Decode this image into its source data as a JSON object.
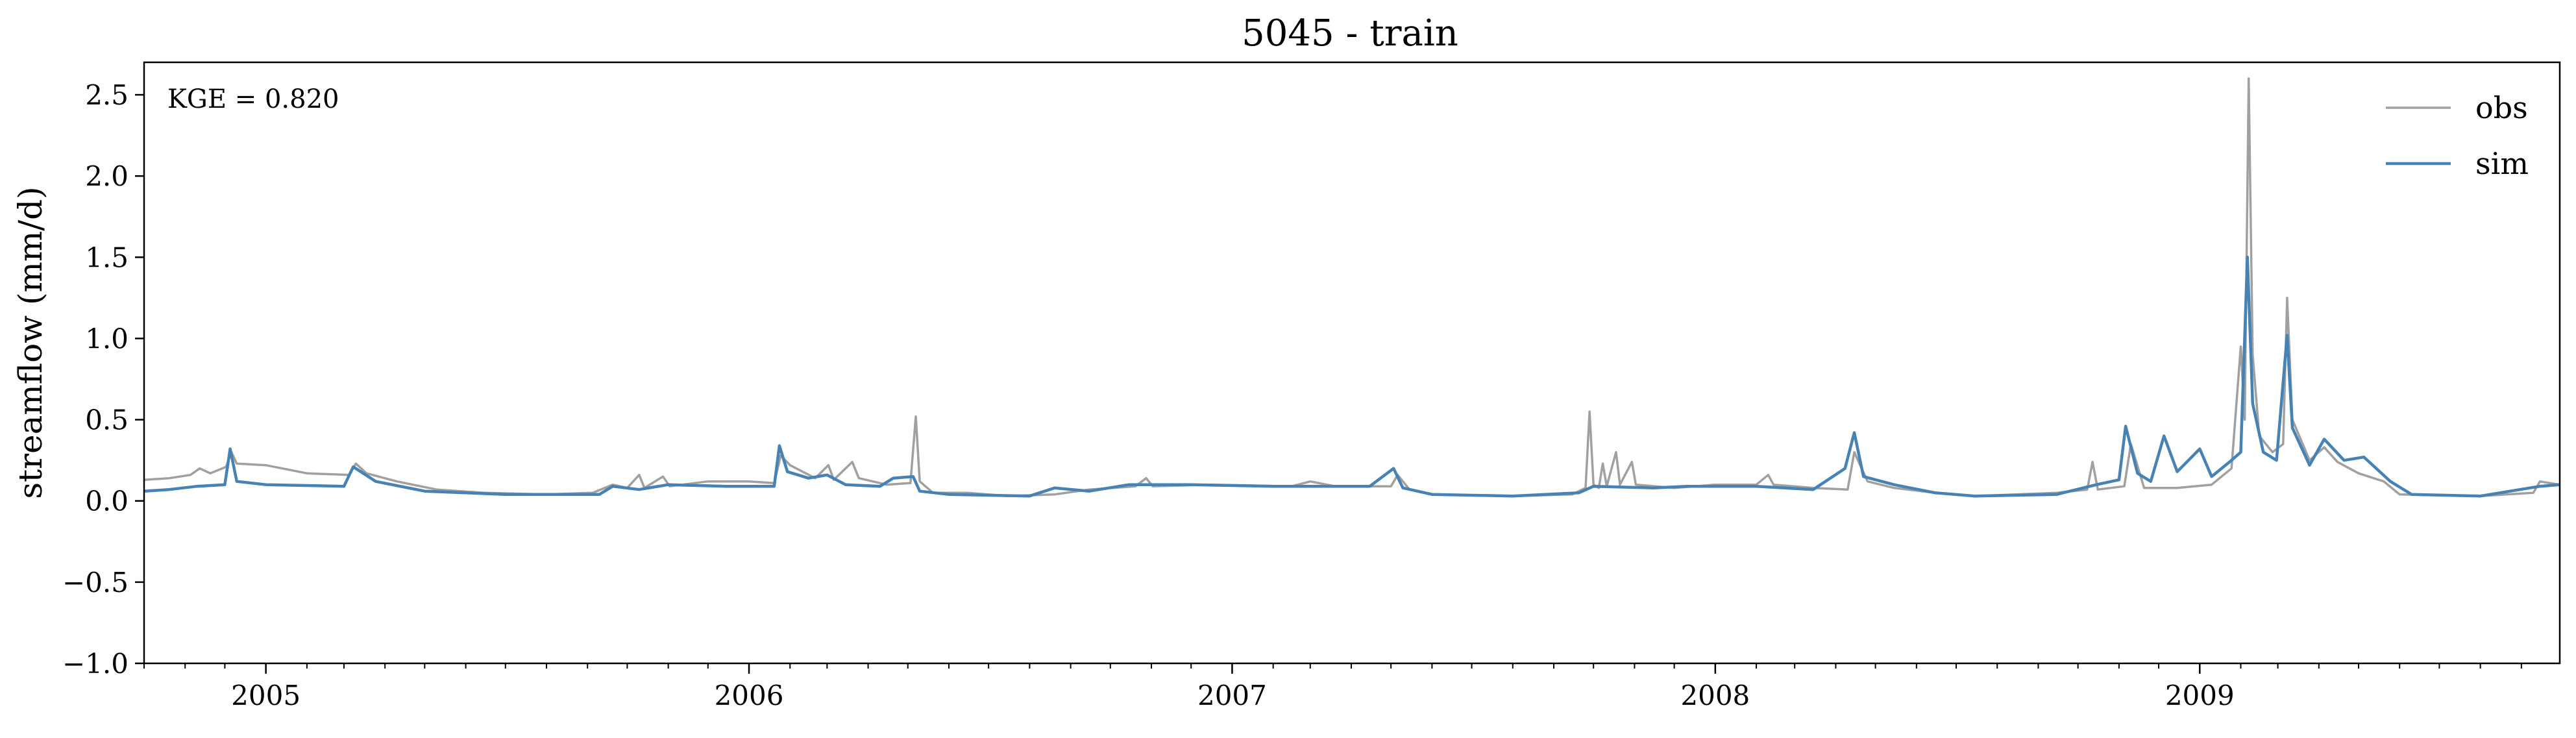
{
  "chart_data": {
    "type": "line",
    "title": "5045 - train",
    "xlabel": "",
    "ylabel": "streamflow (mm/d)",
    "annotation": "KGE = 0.820",
    "xlim": [
      "2004-10-01",
      "2009-09-30"
    ],
    "ylim": [
      -1.0,
      2.7
    ],
    "yticks": [
      -1.0,
      -0.5,
      0.0,
      0.5,
      1.0,
      1.5,
      2.0,
      2.5
    ],
    "ytick_labels": [
      "−1.0",
      "−0.5",
      "0.0",
      "0.5",
      "1.0",
      "1.5",
      "2.0",
      "2.5"
    ],
    "xticks": [
      "2005-01-01",
      "2006-01-01",
      "2007-01-01",
      "2008-01-01",
      "2009-01-01"
    ],
    "xtick_labels": [
      "2005",
      "2006",
      "2007",
      "2008",
      "2009"
    ],
    "grid": false,
    "legend_position": "top-right",
    "series": [
      {
        "name": "obs",
        "color": "#a0a0a0",
        "points": [
          [
            "2004-10-01",
            0.13
          ],
          [
            "2004-10-20",
            0.14
          ],
          [
            "2004-11-05",
            0.16
          ],
          [
            "2004-11-12",
            0.2
          ],
          [
            "2004-11-20",
            0.17
          ],
          [
            "2004-12-02",
            0.21
          ],
          [
            "2004-12-06",
            0.3
          ],
          [
            "2004-12-10",
            0.23
          ],
          [
            "2005-01-01",
            0.22
          ],
          [
            "2005-02-01",
            0.17
          ],
          [
            "2005-03-05",
            0.16
          ],
          [
            "2005-03-10",
            0.23
          ],
          [
            "2005-03-18",
            0.17
          ],
          [
            "2005-04-10",
            0.12
          ],
          [
            "2005-05-10",
            0.07
          ],
          [
            "2005-06-15",
            0.05
          ],
          [
            "2005-08-01",
            0.04
          ],
          [
            "2005-09-05",
            0.05
          ],
          [
            "2005-09-20",
            0.1
          ],
          [
            "2005-10-01",
            0.08
          ],
          [
            "2005-10-10",
            0.16
          ],
          [
            "2005-10-14",
            0.08
          ],
          [
            "2005-10-28",
            0.15
          ],
          [
            "2005-11-02",
            0.09
          ],
          [
            "2005-12-01",
            0.12
          ],
          [
            "2006-01-01",
            0.12
          ],
          [
            "2006-01-20",
            0.11
          ],
          [
            "2006-01-25",
            0.28
          ],
          [
            "2006-02-01",
            0.22
          ],
          [
            "2006-02-20",
            0.14
          ],
          [
            "2006-03-02",
            0.22
          ],
          [
            "2006-03-06",
            0.13
          ],
          [
            "2006-03-20",
            0.24
          ],
          [
            "2006-03-25",
            0.14
          ],
          [
            "2006-04-15",
            0.1
          ],
          [
            "2006-05-03",
            0.11
          ],
          [
            "2006-05-07",
            0.52
          ],
          [
            "2006-05-10",
            0.12
          ],
          [
            "2006-05-20",
            0.05
          ],
          [
            "2006-06-15",
            0.05
          ],
          [
            "2006-07-15",
            0.03
          ],
          [
            "2006-08-20",
            0.04
          ],
          [
            "2006-09-15",
            0.07
          ],
          [
            "2006-10-20",
            0.09
          ],
          [
            "2006-10-28",
            0.14
          ],
          [
            "2006-11-02",
            0.09
          ],
          [
            "2006-12-15",
            0.1
          ],
          [
            "2007-02-15",
            0.09
          ],
          [
            "2007-03-01",
            0.12
          ],
          [
            "2007-03-20",
            0.09
          ],
          [
            "2007-05-01",
            0.09
          ],
          [
            "2007-05-06",
            0.16
          ],
          [
            "2007-05-15",
            0.07
          ],
          [
            "2007-06-01",
            0.04
          ],
          [
            "2007-08-01",
            0.03
          ],
          [
            "2007-09-15",
            0.04
          ],
          [
            "2007-09-25",
            0.08
          ],
          [
            "2007-09-28",
            0.55
          ],
          [
            "2007-10-01",
            0.1
          ],
          [
            "2007-10-05",
            0.08
          ],
          [
            "2007-10-08",
            0.23
          ],
          [
            "2007-10-11",
            0.09
          ],
          [
            "2007-10-18",
            0.3
          ],
          [
            "2007-10-21",
            0.1
          ],
          [
            "2007-10-30",
            0.24
          ],
          [
            "2007-11-02",
            0.1
          ],
          [
            "2007-12-01",
            0.08
          ],
          [
            "2008-01-01",
            0.1
          ],
          [
            "2008-02-01",
            0.1
          ],
          [
            "2008-02-10",
            0.16
          ],
          [
            "2008-02-14",
            0.1
          ],
          [
            "2008-03-15",
            0.08
          ],
          [
            "2008-04-10",
            0.07
          ],
          [
            "2008-04-15",
            0.3
          ],
          [
            "2008-04-25",
            0.12
          ],
          [
            "2008-05-15",
            0.08
          ],
          [
            "2008-06-15",
            0.05
          ],
          [
            "2008-07-15",
            0.03
          ],
          [
            "2008-08-15",
            0.04
          ],
          [
            "2008-09-15",
            0.05
          ],
          [
            "2008-10-08",
            0.07
          ],
          [
            "2008-10-12",
            0.24
          ],
          [
            "2008-10-16",
            0.07
          ],
          [
            "2008-11-05",
            0.09
          ],
          [
            "2008-11-10",
            0.35
          ],
          [
            "2008-11-20",
            0.08
          ],
          [
            "2008-12-15",
            0.08
          ],
          [
            "2009-01-10",
            0.1
          ],
          [
            "2009-01-25",
            0.2
          ],
          [
            "2009-02-01",
            0.95
          ],
          [
            "2009-02-04",
            0.5
          ],
          [
            "2009-02-07",
            2.6
          ],
          [
            "2009-02-10",
            0.9
          ],
          [
            "2009-02-15",
            0.4
          ],
          [
            "2009-02-25",
            0.3
          ],
          [
            "2009-03-05",
            0.35
          ],
          [
            "2009-03-08",
            1.25
          ],
          [
            "2009-03-12",
            0.5
          ],
          [
            "2009-03-25",
            0.25
          ],
          [
            "2009-04-05",
            0.33
          ],
          [
            "2009-04-15",
            0.24
          ],
          [
            "2009-05-01",
            0.17
          ],
          [
            "2009-05-20",
            0.12
          ],
          [
            "2009-06-01",
            0.04
          ],
          [
            "2009-08-01",
            0.03
          ],
          [
            "2009-09-10",
            0.05
          ],
          [
            "2009-09-15",
            0.12
          ],
          [
            "2009-09-30",
            0.1
          ]
        ]
      },
      {
        "name": "sim",
        "color": "#4682b4",
        "points": [
          [
            "2004-10-01",
            0.06
          ],
          [
            "2004-10-20",
            0.07
          ],
          [
            "2004-11-10",
            0.09
          ],
          [
            "2004-12-01",
            0.1
          ],
          [
            "2004-12-05",
            0.32
          ],
          [
            "2004-12-10",
            0.12
          ],
          [
            "2005-01-01",
            0.1
          ],
          [
            "2005-03-01",
            0.09
          ],
          [
            "2005-03-08",
            0.21
          ],
          [
            "2005-03-25",
            0.12
          ],
          [
            "2005-05-01",
            0.06
          ],
          [
            "2005-07-01",
            0.04
          ],
          [
            "2005-09-10",
            0.04
          ],
          [
            "2005-09-20",
            0.09
          ],
          [
            "2005-10-10",
            0.07
          ],
          [
            "2005-11-01",
            0.1
          ],
          [
            "2005-12-15",
            0.09
          ],
          [
            "2006-01-20",
            0.09
          ],
          [
            "2006-01-24",
            0.34
          ],
          [
            "2006-01-30",
            0.18
          ],
          [
            "2006-02-15",
            0.14
          ],
          [
            "2006-03-01",
            0.16
          ],
          [
            "2006-03-15",
            0.1
          ],
          [
            "2006-04-10",
            0.09
          ],
          [
            "2006-04-20",
            0.14
          ],
          [
            "2006-05-05",
            0.15
          ],
          [
            "2006-05-10",
            0.06
          ],
          [
            "2006-06-01",
            0.04
          ],
          [
            "2006-08-01",
            0.03
          ],
          [
            "2006-08-20",
            0.08
          ],
          [
            "2006-09-15",
            0.06
          ],
          [
            "2006-10-15",
            0.1
          ],
          [
            "2006-12-01",
            0.1
          ],
          [
            "2007-02-01",
            0.09
          ],
          [
            "2007-04-15",
            0.09
          ],
          [
            "2007-05-03",
            0.2
          ],
          [
            "2007-05-10",
            0.08
          ],
          [
            "2007-06-01",
            0.04
          ],
          [
            "2007-08-01",
            0.03
          ],
          [
            "2007-09-20",
            0.05
          ],
          [
            "2007-10-01",
            0.09
          ],
          [
            "2007-11-15",
            0.08
          ],
          [
            "2007-12-10",
            0.09
          ],
          [
            "2008-02-01",
            0.09
          ],
          [
            "2008-03-15",
            0.07
          ],
          [
            "2008-04-08",
            0.2
          ],
          [
            "2008-04-15",
            0.42
          ],
          [
            "2008-04-22",
            0.15
          ],
          [
            "2008-05-15",
            0.1
          ],
          [
            "2008-06-15",
            0.05
          ],
          [
            "2008-07-15",
            0.03
          ],
          [
            "2008-09-15",
            0.04
          ],
          [
            "2008-10-15",
            0.1
          ],
          [
            "2008-11-01",
            0.13
          ],
          [
            "2008-11-06",
            0.46
          ],
          [
            "2008-11-15",
            0.17
          ],
          [
            "2008-11-25",
            0.12
          ],
          [
            "2008-12-05",
            0.4
          ],
          [
            "2008-12-15",
            0.18
          ],
          [
            "2009-01-01",
            0.32
          ],
          [
            "2009-01-10",
            0.15
          ],
          [
            "2009-01-25",
            0.25
          ],
          [
            "2009-02-01",
            0.3
          ],
          [
            "2009-02-06",
            1.5
          ],
          [
            "2009-02-10",
            0.6
          ],
          [
            "2009-02-18",
            0.3
          ],
          [
            "2009-02-28",
            0.25
          ],
          [
            "2009-03-08",
            1.02
          ],
          [
            "2009-03-12",
            0.45
          ],
          [
            "2009-03-25",
            0.22
          ],
          [
            "2009-04-05",
            0.38
          ],
          [
            "2009-04-20",
            0.25
          ],
          [
            "2009-05-05",
            0.27
          ],
          [
            "2009-05-25",
            0.12
          ],
          [
            "2009-06-10",
            0.04
          ],
          [
            "2009-08-01",
            0.03
          ],
          [
            "2009-09-15",
            0.09
          ],
          [
            "2009-09-30",
            0.1
          ]
        ]
      }
    ]
  }
}
